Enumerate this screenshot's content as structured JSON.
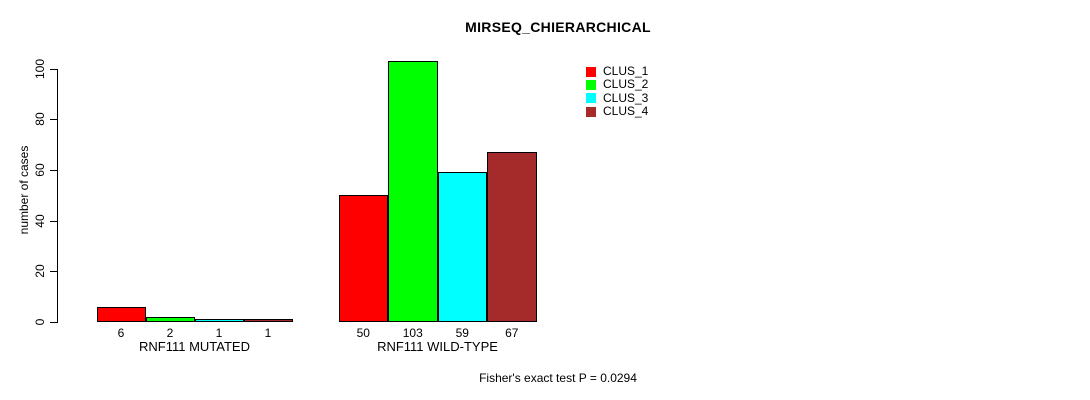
{
  "chart_data": {
    "type": "bar",
    "title": "MIRSEQ_CHIERARCHICAL",
    "ylabel": "number of cases",
    "xlabel": "",
    "footnote": "Fisher's exact test P = 0.0294",
    "categories": [
      "RNF111 MUTATED",
      "RNF111 WILD-TYPE"
    ],
    "series": [
      {
        "name": "CLUS_1",
        "color": "#FF0000",
        "values": [
          6,
          50
        ]
      },
      {
        "name": "CLUS_2",
        "color": "#00FF00",
        "values": [
          2,
          103
        ]
      },
      {
        "name": "CLUS_3",
        "color": "#00FFFF",
        "values": [
          1,
          59
        ]
      },
      {
        "name": "CLUS_4",
        "color": "#A52A2A",
        "values": [
          1,
          67
        ]
      }
    ],
    "yticks": [
      0,
      20,
      40,
      60,
      80,
      100
    ],
    "ylim": [
      0,
      100
    ],
    "grid": false,
    "legend_position": "top-right",
    "bar_border_color": "#000000",
    "axis_color": "#000000"
  }
}
